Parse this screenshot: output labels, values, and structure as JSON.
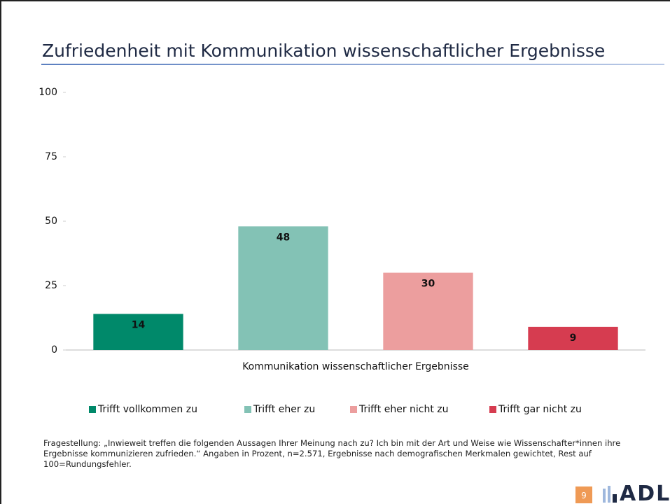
{
  "header": {
    "title": "Zufriedenheit mit Kommunikation wissenschaftlicher Ergebnisse"
  },
  "chart_data": {
    "type": "bar",
    "categories": [
      "Kommunikation wissenschaftlicher Ergebnisse"
    ],
    "series": [
      {
        "name": "Trifft vollkommen zu",
        "color": "#00896a",
        "values": [
          14
        ]
      },
      {
        "name": "Trifft eher zu",
        "color": "#83c2b5",
        "values": [
          48
        ]
      },
      {
        "name": "Trifft eher nicht zu",
        "color": "#ec9e9e",
        "values": [
          30
        ]
      },
      {
        "name": "Trifft gar nicht zu",
        "color": "#d63c50",
        "values": [
          9
        ]
      }
    ],
    "ylim": [
      0,
      100
    ],
    "yticks": [
      0,
      25,
      50,
      75,
      100
    ],
    "grid": false,
    "legend": "bottom"
  },
  "footnote": "Fragestellung: „Inwieweit treffen die folgenden Aussagen Ihrer Meinung nach zu? Ich bin mit der Art und Weise wie Wissenschafter*innen ihre Ergebnisse kommunizieren zufrieden.“ Angaben in Prozent, n=2.571, Ergebnisse nach demografischen Merkmalen gewichtet, Rest auf 100=Rundungsfehler.",
  "footer": {
    "page": "9",
    "logo": "ADL"
  }
}
